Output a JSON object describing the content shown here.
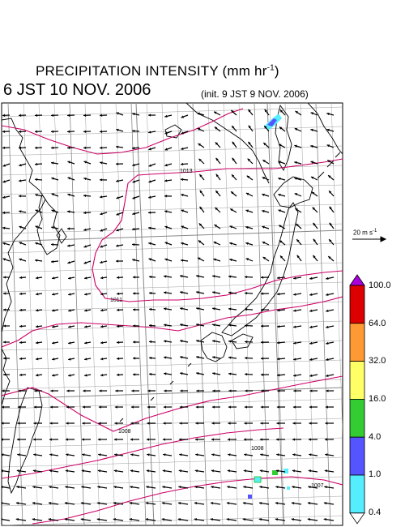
{
  "title": {
    "main": "PRECIPITATION INTENSITY (mm hr",
    "exp": "-1",
    "close": ")"
  },
  "valid_time": "6 JST 10 NOV. 2006",
  "init_time": "(init. 9 JST 9 NOV. 2006)",
  "reference_vector": {
    "value": "20 m s",
    "exp": "-1"
  },
  "colorbar": {
    "labels": [
      "100.0",
      "64.0",
      "32.0",
      "16.0",
      "4.0",
      "1.0",
      "0.4"
    ],
    "colors": [
      "#dd0000",
      "#ff9933",
      "#ffff66",
      "#33cc33",
      "#5555ff",
      "#55eeff"
    ],
    "over_color": "#aa00dd",
    "under_color": "#ffffff"
  },
  "isobars": {
    "labels": [
      "1013",
      "1011",
      "1008",
      "1008",
      "1007"
    ],
    "color": "#cc0066"
  },
  "colors": {
    "coast": "#000000",
    "grid": "#888888",
    "frame": "#000000",
    "arrow": "#000000"
  }
}
